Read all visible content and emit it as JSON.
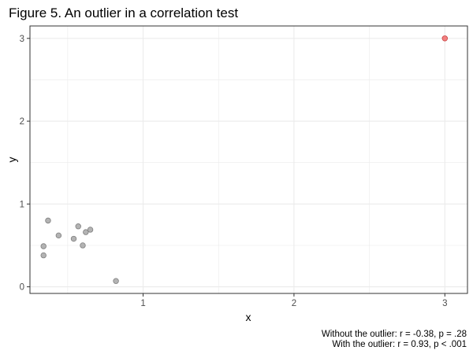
{
  "chart_data": {
    "type": "scatter",
    "title": "Figure 5. An outlier in a correlation test",
    "xlabel": "x",
    "ylabel": "y",
    "xlim": [
      0.25,
      3.15
    ],
    "ylim": [
      -0.08,
      3.15
    ],
    "x_ticks": [
      1,
      2,
      3
    ],
    "y_ticks": [
      0,
      1,
      2,
      3
    ],
    "grid": true,
    "points": [
      {
        "x": 0.34,
        "y": 0.38,
        "outlier": false
      },
      {
        "x": 0.34,
        "y": 0.49,
        "outlier": false
      },
      {
        "x": 0.37,
        "y": 0.8,
        "outlier": false
      },
      {
        "x": 0.44,
        "y": 0.62,
        "outlier": false
      },
      {
        "x": 0.54,
        "y": 0.58,
        "outlier": false
      },
      {
        "x": 0.57,
        "y": 0.73,
        "outlier": false
      },
      {
        "x": 0.6,
        "y": 0.5,
        "outlier": false
      },
      {
        "x": 0.62,
        "y": 0.66,
        "outlier": false
      },
      {
        "x": 0.65,
        "y": 0.69,
        "outlier": false
      },
      {
        "x": 0.82,
        "y": 0.07,
        "outlier": false
      },
      {
        "x": 3.0,
        "y": 3.0,
        "outlier": true
      }
    ],
    "caption_lines": [
      "Without the outlier: r = -0.38, p = .28",
      "With the outlier: r = 0.93, p < .001"
    ],
    "colors": {
      "point_fill": "#b3b3b3",
      "point_stroke": "#7f7f7f",
      "outlier_fill": "#f28080",
      "outlier_stroke": "#c84040",
      "grid": "#ebebeb",
      "panel_border": "#333333"
    }
  }
}
